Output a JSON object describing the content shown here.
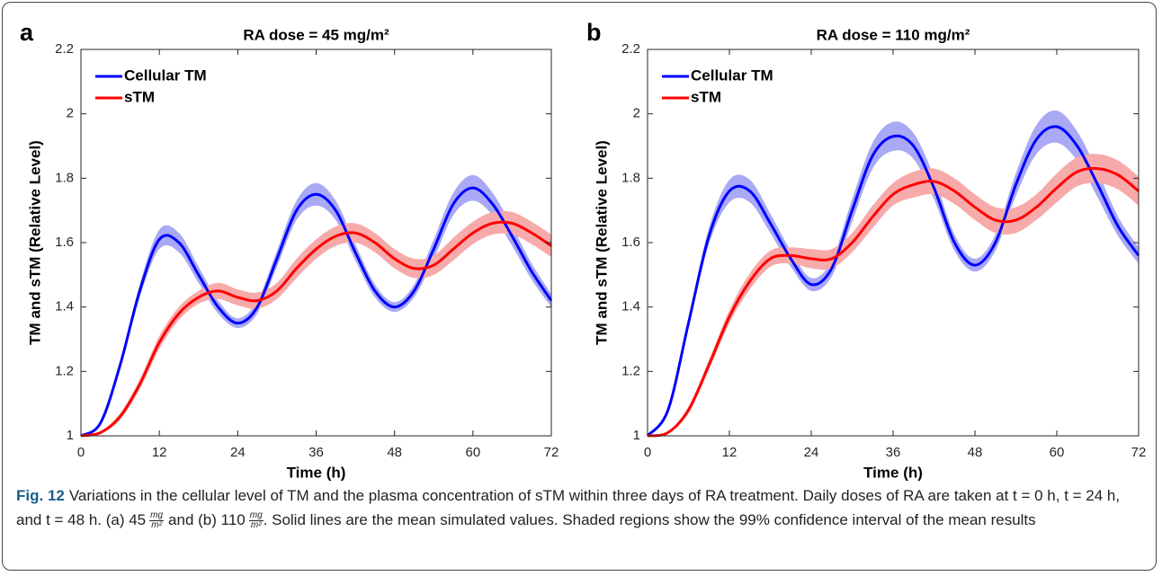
{
  "chart_data": [
    {
      "type": "line",
      "panel_label": "a",
      "title": "RA dose = 45 mg/m²",
      "xlabel": "Time (h)",
      "ylabel": "TM and sTM (Relative Level)",
      "x": [
        0,
        3,
        6,
        9,
        12,
        15,
        18,
        21,
        24,
        27,
        30,
        33,
        36,
        39,
        42,
        45,
        48,
        51,
        54,
        57,
        60,
        63,
        66,
        69,
        72
      ],
      "xlim": [
        0,
        72
      ],
      "xticks": [
        0,
        12,
        24,
        36,
        48,
        60,
        72
      ],
      "ylim": [
        1,
        2.2
      ],
      "yticks": [
        1,
        1.2,
        1.4,
        1.6,
        1.8,
        2,
        2.2
      ],
      "legend": "upper left",
      "series": [
        {
          "name": "Cellular TM",
          "color": "#0000ff",
          "band_color": "#a9a9f5",
          "values": [
            1.0,
            1.04,
            1.22,
            1.45,
            1.61,
            1.6,
            1.5,
            1.4,
            1.35,
            1.4,
            1.55,
            1.7,
            1.75,
            1.7,
            1.57,
            1.45,
            1.4,
            1.45,
            1.58,
            1.72,
            1.77,
            1.72,
            1.62,
            1.51,
            1.42
          ],
          "ci": [
            0,
            0.005,
            0.01,
            0.02,
            0.03,
            0.03,
            0.025,
            0.02,
            0.015,
            0.02,
            0.025,
            0.03,
            0.035,
            0.03,
            0.025,
            0.02,
            0.015,
            0.02,
            0.03,
            0.035,
            0.04,
            0.035,
            0.03,
            0.025,
            0.02
          ]
        },
        {
          "name": "sTM",
          "color": "#ff0000",
          "band_color": "#f7aaaa",
          "values": [
            1.0,
            1.01,
            1.06,
            1.16,
            1.29,
            1.38,
            1.43,
            1.45,
            1.43,
            1.42,
            1.45,
            1.52,
            1.58,
            1.62,
            1.63,
            1.6,
            1.55,
            1.52,
            1.53,
            1.58,
            1.63,
            1.66,
            1.66,
            1.63,
            1.59
          ],
          "ci": [
            0,
            0.003,
            0.01,
            0.015,
            0.02,
            0.02,
            0.02,
            0.025,
            0.025,
            0.025,
            0.025,
            0.03,
            0.03,
            0.03,
            0.03,
            0.03,
            0.03,
            0.03,
            0.03,
            0.035,
            0.035,
            0.035,
            0.035,
            0.035,
            0.035
          ]
        }
      ]
    },
    {
      "type": "line",
      "panel_label": "b",
      "title": "RA dose = 110 mg/m²",
      "xlabel": "Time (h)",
      "ylabel": "TM and sTM (Relative Level)",
      "x": [
        0,
        3,
        6,
        9,
        12,
        15,
        18,
        21,
        24,
        27,
        30,
        33,
        36,
        39,
        42,
        45,
        48,
        51,
        54,
        57,
        60,
        63,
        66,
        69,
        72
      ],
      "xlim": [
        0,
        72
      ],
      "xticks": [
        0,
        12,
        24,
        36,
        48,
        60,
        72
      ],
      "ylim": [
        1,
        2.2
      ],
      "yticks": [
        1,
        1.2,
        1.4,
        1.6,
        1.8,
        2,
        2.2
      ],
      "legend": "upper left",
      "series": [
        {
          "name": "Cellular TM",
          "color": "#0000ff",
          "band_color": "#a9a9f5",
          "values": [
            1.0,
            1.08,
            1.35,
            1.62,
            1.76,
            1.76,
            1.66,
            1.55,
            1.47,
            1.52,
            1.7,
            1.87,
            1.93,
            1.9,
            1.77,
            1.6,
            1.53,
            1.6,
            1.78,
            1.92,
            1.96,
            1.9,
            1.78,
            1.65,
            1.56
          ],
          "ci": [
            0,
            0.005,
            0.015,
            0.025,
            0.035,
            0.035,
            0.03,
            0.025,
            0.02,
            0.025,
            0.035,
            0.04,
            0.045,
            0.04,
            0.035,
            0.025,
            0.02,
            0.025,
            0.035,
            0.045,
            0.05,
            0.045,
            0.04,
            0.03,
            0.025
          ]
        },
        {
          "name": "sTM",
          "color": "#ff0000",
          "band_color": "#f7aaaa",
          "values": [
            1.0,
            1.01,
            1.08,
            1.22,
            1.37,
            1.48,
            1.55,
            1.56,
            1.55,
            1.55,
            1.6,
            1.68,
            1.75,
            1.78,
            1.79,
            1.76,
            1.71,
            1.67,
            1.67,
            1.71,
            1.77,
            1.82,
            1.83,
            1.81,
            1.76
          ],
          "ci": [
            0,
            0.003,
            0.01,
            0.015,
            0.02,
            0.025,
            0.025,
            0.025,
            0.03,
            0.03,
            0.03,
            0.035,
            0.035,
            0.04,
            0.04,
            0.04,
            0.04,
            0.04,
            0.04,
            0.04,
            0.045,
            0.045,
            0.045,
            0.045,
            0.045
          ]
        }
      ]
    }
  ],
  "caption": {
    "label": "Fig. 12",
    "text_1": "Variations in the cellular level of TM and the plasma concentration of sTM within three days of RA treatment. Daily doses of RA are taken at t = 0 h, t = 24 h, and t = 48 h. (a) 45",
    "fraction_1": {
      "num": "mg",
      "den": "m²"
    },
    "text_2": "and (b) 110",
    "fraction_2": {
      "num": "mg",
      "den": "m²"
    },
    "text_3": ". Solid lines are the mean simulated values. Shaded regions show the 99% confidence interval of the mean results"
  }
}
